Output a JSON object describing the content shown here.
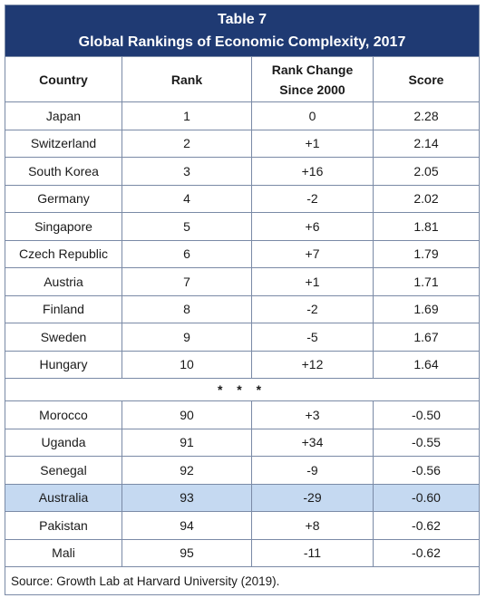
{
  "table": {
    "title_line1": "Table 7",
    "title_line2": "Global Rankings of Economic Complexity, 2017",
    "headers": {
      "country": "Country",
      "rank": "Rank",
      "change_line1": "Rank Change",
      "change_line2": "Since 2000",
      "score": "Score"
    },
    "top_rows": [
      {
        "country": "Japan",
        "rank": "1",
        "change": "0",
        "score": "2.28"
      },
      {
        "country": "Switzerland",
        "rank": "2",
        "change": "+1",
        "score": "2.14"
      },
      {
        "country": "South Korea",
        "rank": "3",
        "change": "+16",
        "score": "2.05"
      },
      {
        "country": "Germany",
        "rank": "4",
        "change": "-2",
        "score": "2.02"
      },
      {
        "country": "Singapore",
        "rank": "5",
        "change": "+6",
        "score": "1.81"
      },
      {
        "country": "Czech Republic",
        "rank": "6",
        "change": "+7",
        "score": "1.79"
      },
      {
        "country": "Austria",
        "rank": "7",
        "change": "+1",
        "score": "1.71"
      },
      {
        "country": "Finland",
        "rank": "8",
        "change": "-2",
        "score": "1.69"
      },
      {
        "country": "Sweden",
        "rank": "9",
        "change": "-5",
        "score": "1.67"
      },
      {
        "country": "Hungary",
        "rank": "10",
        "change": "+12",
        "score": "1.64"
      }
    ],
    "separator": "* * *",
    "bottom_rows": [
      {
        "country": "Morocco",
        "rank": "90",
        "change": "+3",
        "score": "-0.50"
      },
      {
        "country": "Uganda",
        "rank": "91",
        "change": "+34",
        "score": "-0.55"
      },
      {
        "country": "Senegal",
        "rank": "92",
        "change": "-9",
        "score": "-0.56"
      },
      {
        "country": "Australia",
        "rank": "93",
        "change": "-29",
        "score": "-0.60"
      },
      {
        "country": "Pakistan",
        "rank": "94",
        "change": "+8",
        "score": "-0.62"
      },
      {
        "country": "Mali",
        "rank": "95",
        "change": "-11",
        "score": "-0.62"
      }
    ],
    "highlighted_country": "Australia",
    "source": "Source: Growth Lab at Harvard University (2019)."
  },
  "colors": {
    "title_background": "#1f3a73",
    "highlight_background": "#c5d9f1",
    "border": "#7a8aa6"
  }
}
